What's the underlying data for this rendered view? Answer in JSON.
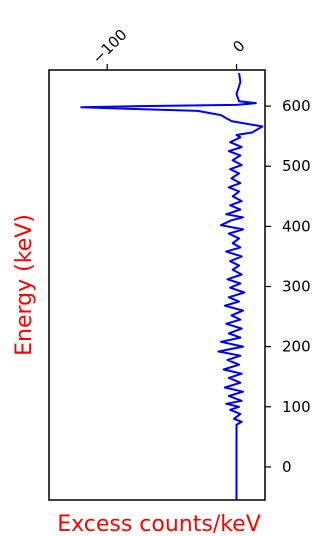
{
  "chart_data": {
    "type": "line",
    "orientation": "vertical",
    "xlabel": "Excess counts/keV",
    "ylabel": "Energy (keV)",
    "label_color": "#ff0000",
    "line_color": "#0000ee",
    "x_axis_position": "top",
    "y_axis_position": "right",
    "xlim": [
      -145,
      22
    ],
    "ylim": [
      -55,
      660
    ],
    "x_ticks": [
      {
        "value": -100,
        "label": "−100"
      },
      {
        "value": 0,
        "label": "0"
      }
    ],
    "y_ticks": [
      {
        "value": 0,
        "label": "0"
      },
      {
        "value": 100,
        "label": "100"
      },
      {
        "value": 200,
        "label": "200"
      },
      {
        "value": 300,
        "label": "300"
      },
      {
        "value": 400,
        "label": "400"
      },
      {
        "value": 500,
        "label": "500"
      },
      {
        "value": 600,
        "label": "600"
      }
    ],
    "series": [
      {
        "points": [
          [
            0,
            -55
          ],
          [
            0,
            0
          ],
          [
            0,
            50
          ],
          [
            0,
            70
          ],
          [
            4,
            75
          ],
          [
            -2,
            80
          ],
          [
            3,
            88
          ],
          [
            -5,
            95
          ],
          [
            2,
            100
          ],
          [
            -8,
            105
          ],
          [
            4,
            110
          ],
          [
            -6,
            118
          ],
          [
            5,
            125
          ],
          [
            -9,
            132
          ],
          [
            3,
            140
          ],
          [
            -6,
            148
          ],
          [
            4,
            155
          ],
          [
            -10,
            162
          ],
          [
            2,
            170
          ],
          [
            -7,
            178
          ],
          [
            3,
            185
          ],
          [
            -14,
            192
          ],
          [
            5,
            200
          ],
          [
            -12,
            208
          ],
          [
            3,
            215
          ],
          [
            -6,
            222
          ],
          [
            4,
            230
          ],
          [
            -8,
            238
          ],
          [
            3,
            245
          ],
          [
            -4,
            252
          ],
          [
            5,
            260
          ],
          [
            -9,
            268
          ],
          [
            2,
            275
          ],
          [
            -6,
            282
          ],
          [
            6,
            290
          ],
          [
            -5,
            298
          ],
          [
            3,
            305
          ],
          [
            -7,
            312
          ],
          [
            4,
            320
          ],
          [
            -3,
            328
          ],
          [
            2,
            335
          ],
          [
            -5,
            342
          ],
          [
            4,
            350
          ],
          [
            -8,
            358
          ],
          [
            3,
            365
          ],
          [
            -3,
            372
          ],
          [
            2,
            380
          ],
          [
            -6,
            388
          ],
          [
            5,
            395
          ],
          [
            -12,
            402
          ],
          [
            -4,
            410
          ],
          [
            5,
            415
          ],
          [
            -8,
            420
          ],
          [
            3,
            428
          ],
          [
            -5,
            435
          ],
          [
            4,
            442
          ],
          [
            -3,
            450
          ],
          [
            2,
            458
          ],
          [
            -6,
            465
          ],
          [
            3,
            472
          ],
          [
            -4,
            480
          ],
          [
            2,
            488
          ],
          [
            -5,
            495
          ],
          [
            4,
            502
          ],
          [
            -3,
            510
          ],
          [
            3,
            518
          ],
          [
            -6,
            525
          ],
          [
            4,
            532
          ],
          [
            -5,
            540
          ],
          [
            3,
            548
          ],
          [
            0,
            552
          ],
          [
            12,
            556
          ],
          [
            20,
            566
          ],
          [
            -4,
            575
          ],
          [
            -12,
            585
          ],
          [
            -30,
            592
          ],
          [
            -120,
            598
          ],
          [
            -75,
            600
          ],
          [
            0,
            602
          ],
          [
            15,
            605
          ],
          [
            2,
            608
          ],
          [
            0,
            620
          ],
          [
            3,
            640
          ],
          [
            2,
            655
          ]
        ]
      }
    ]
  }
}
